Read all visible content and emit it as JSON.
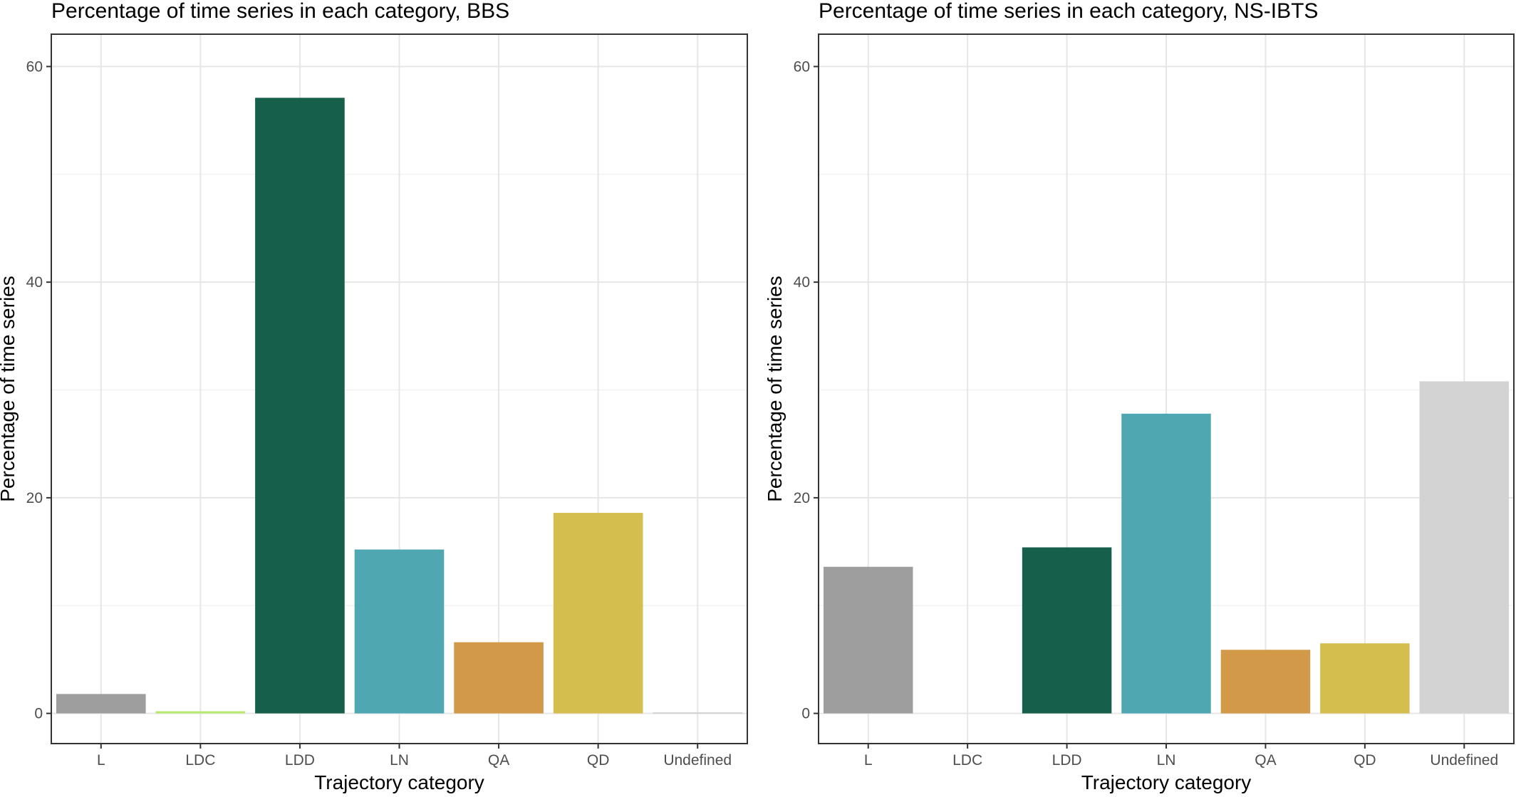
{
  "chart_data": [
    {
      "type": "bar",
      "title": "Percentage of time series in each category, BBS",
      "xlabel": "Trajectory category",
      "ylabel": "Percentage of time series",
      "categories": [
        "L",
        "LDC",
        "LDD",
        "LN",
        "QA",
        "QD",
        "Undefined"
      ],
      "values": [
        1.8,
        0.2,
        57.1,
        15.2,
        6.6,
        18.6,
        0.1
      ],
      "colors": [
        "#9e9e9e",
        "#b6ea6e",
        "#165f4a",
        "#4fa7b2",
        "#d29a48",
        "#d4bf4e",
        "#d3d3d3"
      ],
      "ylim": [
        -2.8,
        63
      ],
      "yticks": [
        0,
        20,
        40,
        60
      ],
      "grid": true
    },
    {
      "type": "bar",
      "title": "Percentage of time series in each category, NS-IBTS",
      "xlabel": "Trajectory category",
      "ylabel": "Percentage of time series",
      "categories": [
        "L",
        "LDC",
        "LDD",
        "LN",
        "QA",
        "QD",
        "Undefined"
      ],
      "values": [
        13.6,
        0,
        15.4,
        27.8,
        5.9,
        6.5,
        30.8
      ],
      "colors": [
        "#9e9e9e",
        "#b6ea6e",
        "#165f4a",
        "#4fa7b2",
        "#d29a48",
        "#d4bf4e",
        "#d3d3d3"
      ],
      "ylim": [
        -2.8,
        63
      ],
      "yticks": [
        0,
        20,
        40,
        60
      ],
      "grid": true
    }
  ]
}
